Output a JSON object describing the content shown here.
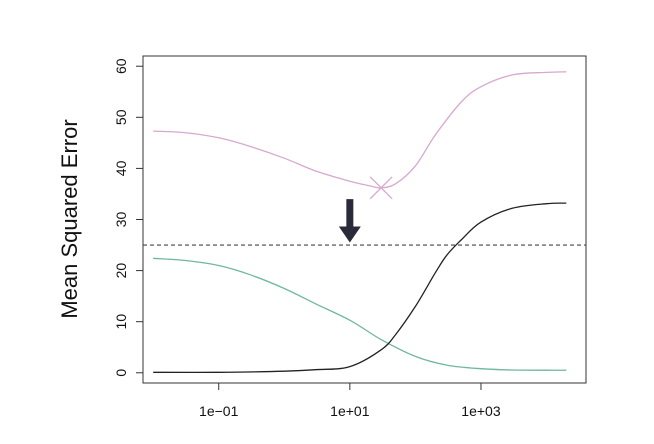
{
  "chart_data": {
    "type": "line",
    "title": "",
    "xlabel": "",
    "ylabel": "Mean Squared Error",
    "x_scale": "log10",
    "xlim": [
      0.007,
      40000
    ],
    "ylim": [
      -2,
      62
    ],
    "x_ticks": [
      {
        "value": 0.1,
        "label": "1e−01"
      },
      {
        "value": 10,
        "label": "1e+01"
      },
      {
        "value": 1000,
        "label": "1e+03"
      }
    ],
    "y_ticks": [
      0,
      10,
      20,
      30,
      40,
      50,
      60
    ],
    "grid": false,
    "legend": "none",
    "hline": {
      "y": 25,
      "style": "dashed",
      "color": "#444444"
    },
    "series": [
      {
        "color": "#d8a8cf",
        "x": [
          0.01,
          0.03,
          0.1,
          0.3,
          1,
          3,
          10,
          20,
          30,
          50,
          100,
          200,
          500,
          1000,
          3000,
          10000,
          20000
        ],
        "y": [
          47.3,
          47.0,
          46.0,
          44.3,
          42.0,
          39.5,
          37.5,
          36.6,
          36.2,
          37.0,
          40.5,
          46.5,
          53.0,
          56.0,
          58.3,
          58.8,
          58.9
        ]
      },
      {
        "color": "#6fb89a",
        "x": [
          0.01,
          0.03,
          0.1,
          0.3,
          1,
          3,
          10,
          30,
          100,
          300,
          1000,
          3000,
          10000,
          20000
        ],
        "y": [
          22.4,
          22.0,
          21.0,
          19.2,
          16.5,
          13.5,
          10.3,
          6.5,
          3.2,
          1.5,
          0.8,
          0.55,
          0.5,
          0.5
        ]
      },
      {
        "color": "#222222",
        "x": [
          0.01,
          0.1,
          1,
          3,
          10,
          30,
          50,
          100,
          200,
          300,
          500,
          1000,
          3000,
          10000,
          20000
        ],
        "y": [
          0.1,
          0.1,
          0.3,
          0.6,
          1.2,
          4.5,
          7.5,
          13.0,
          19.5,
          23.0,
          26.0,
          29.5,
          32.2,
          33.1,
          33.2
        ]
      }
    ],
    "markers": [
      {
        "x": 30,
        "y": 36.2,
        "shape": "x",
        "color": "#d8a8cf"
      }
    ],
    "annotations": [
      {
        "type": "arrow",
        "direction": "down",
        "x": 10,
        "y_top": 34,
        "y_tip": 25.5,
        "color": "#2a2a3a"
      }
    ]
  }
}
